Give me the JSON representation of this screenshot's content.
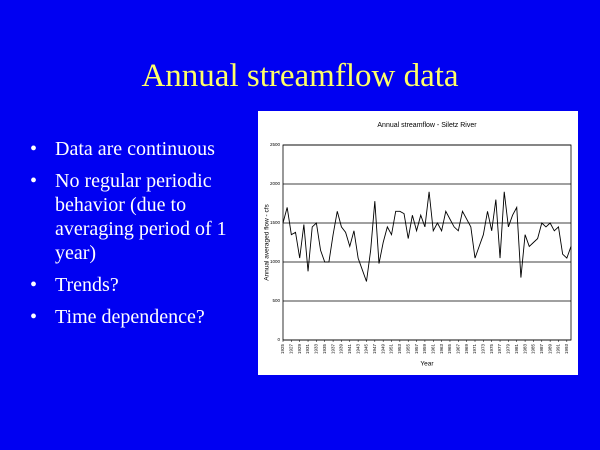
{
  "slide": {
    "title": "Annual streamflow data",
    "bullets": [
      "Data are continuous",
      "No regular periodic behavior (due to averaging period of 1 year)",
      "Trends?",
      "Time dependence?"
    ]
  },
  "chart_data": {
    "type": "line",
    "title": "Annual streamflow - Siletz River",
    "x_label": "Year",
    "y_label": "Annual averaged flow - cfs",
    "color": "#000000",
    "grid": true,
    "x": [
      1925,
      1926,
      1927,
      1928,
      1929,
      1930,
      1931,
      1932,
      1933,
      1934,
      1935,
      1936,
      1937,
      1938,
      1939,
      1940,
      1941,
      1942,
      1943,
      1944,
      1945,
      1946,
      1947,
      1948,
      1949,
      1950,
      1951,
      1952,
      1953,
      1954,
      1955,
      1956,
      1957,
      1958,
      1959,
      1960,
      1961,
      1962,
      1963,
      1964,
      1965,
      1966,
      1967,
      1968,
      1969,
      1970,
      1971,
      1972,
      1973,
      1974,
      1975,
      1976,
      1977,
      1978,
      1979,
      1980,
      1981,
      1982,
      1983,
      1984,
      1985,
      1986,
      1987,
      1988,
      1989,
      1990,
      1991,
      1992,
      1993,
      1994
    ],
    "values": [
      1500,
      1700,
      1350,
      1380,
      1050,
      1480,
      880,
      1450,
      1500,
      1150,
      1000,
      1000,
      1350,
      1650,
      1450,
      1380,
      1200,
      1400,
      1050,
      900,
      750,
      1150,
      1780,
      980,
      1250,
      1450,
      1350,
      1650,
      1650,
      1620,
      1300,
      1600,
      1400,
      1600,
      1450,
      1900,
      1400,
      1500,
      1400,
      1650,
      1550,
      1450,
      1400,
      1650,
      1550,
      1450,
      1050,
      1200,
      1350,
      1650,
      1400,
      1800,
      1050,
      1900,
      1450,
      1600,
      1700,
      800,
      1350,
      1200,
      1250,
      1300,
      1500,
      1450,
      1500,
      1400,
      1450,
      1100,
      1050,
      1200
    ],
    "xlim": [
      1925,
      1994
    ],
    "xticks": [
      1925,
      1927,
      1929,
      1931,
      1933,
      1935,
      1937,
      1939,
      1941,
      1943,
      1945,
      1947,
      1949,
      1951,
      1953,
      1955,
      1957,
      1959,
      1961,
      1963,
      1965,
      1967,
      1969,
      1971,
      1973,
      1975,
      1977,
      1979,
      1981,
      1983,
      1985,
      1987,
      1989,
      1991,
      1993
    ],
    "ylim": [
      0,
      2500
    ],
    "yticks": [
      0,
      500,
      1000,
      1500,
      2000,
      2500
    ]
  }
}
